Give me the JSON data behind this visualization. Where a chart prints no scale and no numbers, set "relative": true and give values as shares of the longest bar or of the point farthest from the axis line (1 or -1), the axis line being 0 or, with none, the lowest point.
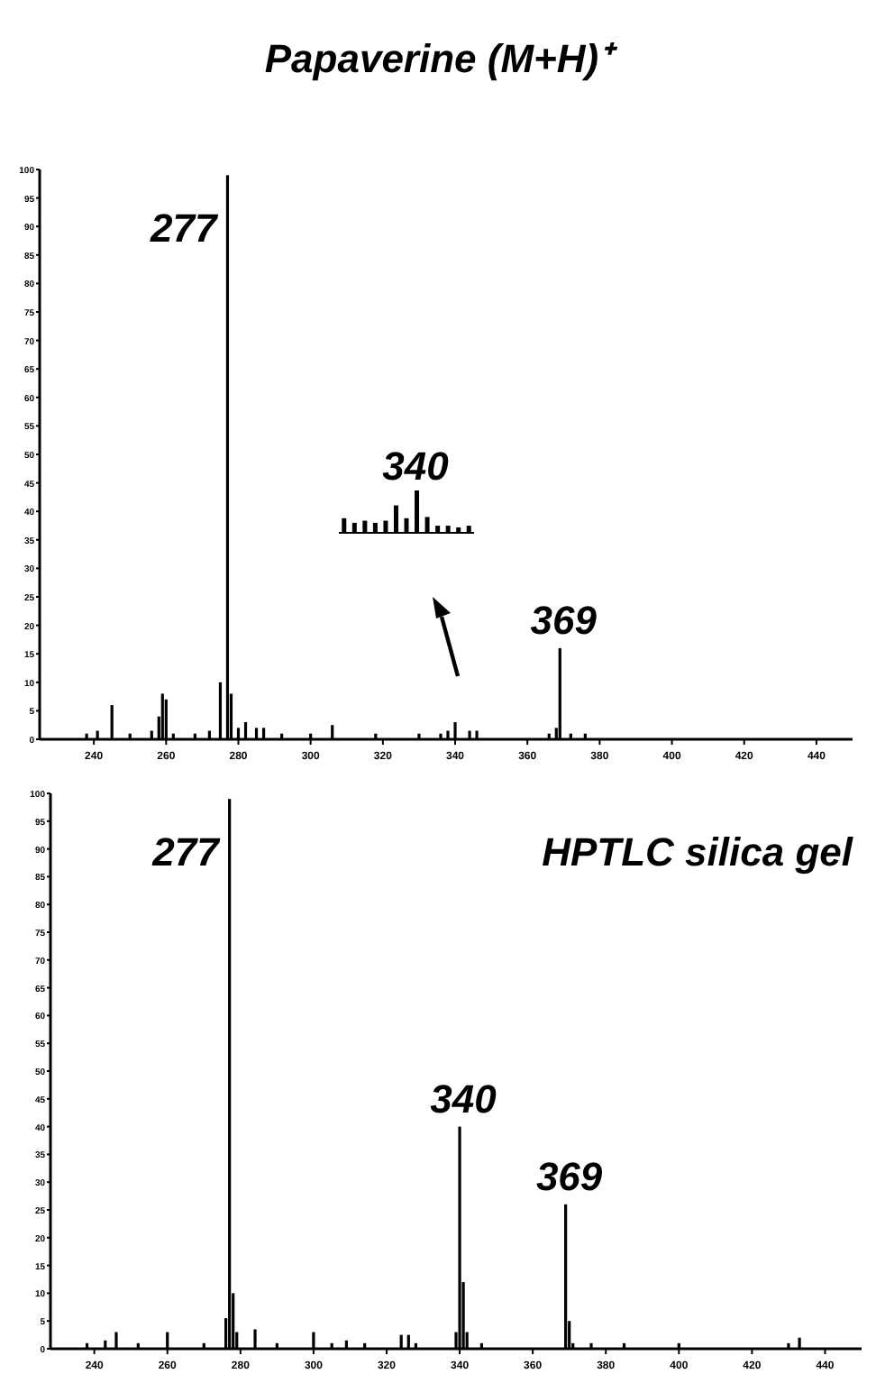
{
  "chart_data": [
    {
      "type": "bar",
      "title": "Papaverine  (M+H)⁺",
      "color": "#000000",
      "x": [
        238,
        241,
        245,
        250,
        256,
        258,
        259,
        260,
        262,
        268,
        272,
        275,
        277,
        278,
        280,
        282,
        285,
        287,
        292,
        300,
        306,
        318,
        330,
        336,
        338,
        340,
        344,
        346,
        366,
        368,
        369,
        372,
        376
      ],
      "values": [
        1,
        1.5,
        6,
        1,
        1.5,
        4,
        8,
        7,
        1,
        1,
        1.5,
        10,
        99,
        8,
        2,
        3,
        2,
        2,
        1,
        1,
        2.5,
        1,
        1,
        1,
        1.5,
        3,
        1.5,
        1.5,
        1,
        2,
        16,
        1,
        1
      ],
      "xlim": [
        225,
        450
      ],
      "xticks": [
        240,
        260,
        280,
        300,
        320,
        340,
        360,
        380,
        400,
        420,
        440
      ],
      "ylim": [
        0,
        100
      ],
      "yticks": [
        0,
        5,
        10,
        15,
        20,
        25,
        30,
        35,
        40,
        45,
        50,
        55,
        60,
        65,
        70,
        75,
        80,
        85,
        90,
        95,
        100
      ],
      "annotations": [
        {
          "text": "277",
          "x": 277,
          "y": 99
        },
        {
          "text": "369",
          "x": 369,
          "y": 16
        }
      ]
    },
    {
      "type": "bar",
      "relative": true,
      "color": "#000000",
      "categories": [
        null,
        null,
        null,
        null,
        null,
        null,
        null,
        null,
        null,
        null,
        null,
        null,
        null
      ],
      "values": [
        0.33,
        0.22,
        0.27,
        0.22,
        0.27,
        0.64,
        0.33,
        1,
        0.36,
        0.15,
        0.15,
        0.11,
        0.15
      ],
      "annotations": [
        "340"
      ]
    },
    {
      "type": "bar",
      "color": "#000000",
      "x": [
        238,
        243,
        246,
        252,
        260,
        270,
        276,
        277,
        278,
        279,
        284,
        290,
        300,
        305,
        309,
        314,
        324,
        326,
        328,
        339,
        340,
        341,
        342,
        346,
        369,
        370,
        371,
        376,
        385,
        400,
        430,
        433
      ],
      "values": [
        1,
        1.5,
        3,
        1,
        3,
        1,
        5.5,
        99,
        10,
        3,
        3.5,
        1,
        3,
        1,
        1.5,
        1,
        2.5,
        2.5,
        1,
        3,
        40,
        12,
        3,
        1,
        26,
        5,
        1,
        1,
        1,
        1,
        1,
        2
      ],
      "xlim": [
        228,
        450
      ],
      "xticks": [
        240,
        260,
        280,
        300,
        320,
        340,
        360,
        380,
        400,
        420,
        440
      ],
      "ylim": [
        0,
        100
      ],
      "yticks": [
        0,
        5,
        10,
        15,
        20,
        25,
        30,
        35,
        40,
        45,
        50,
        55,
        60,
        65,
        70,
        75,
        80,
        85,
        90,
        95,
        100
      ],
      "annotations": [
        "HPTLC silica gel",
        {
          "text": "277",
          "x": 277,
          "y": 99
        },
        {
          "text": "340",
          "x": 340,
          "y": 40
        },
        {
          "text": "369",
          "x": 369,
          "y": 26
        }
      ]
    }
  ]
}
